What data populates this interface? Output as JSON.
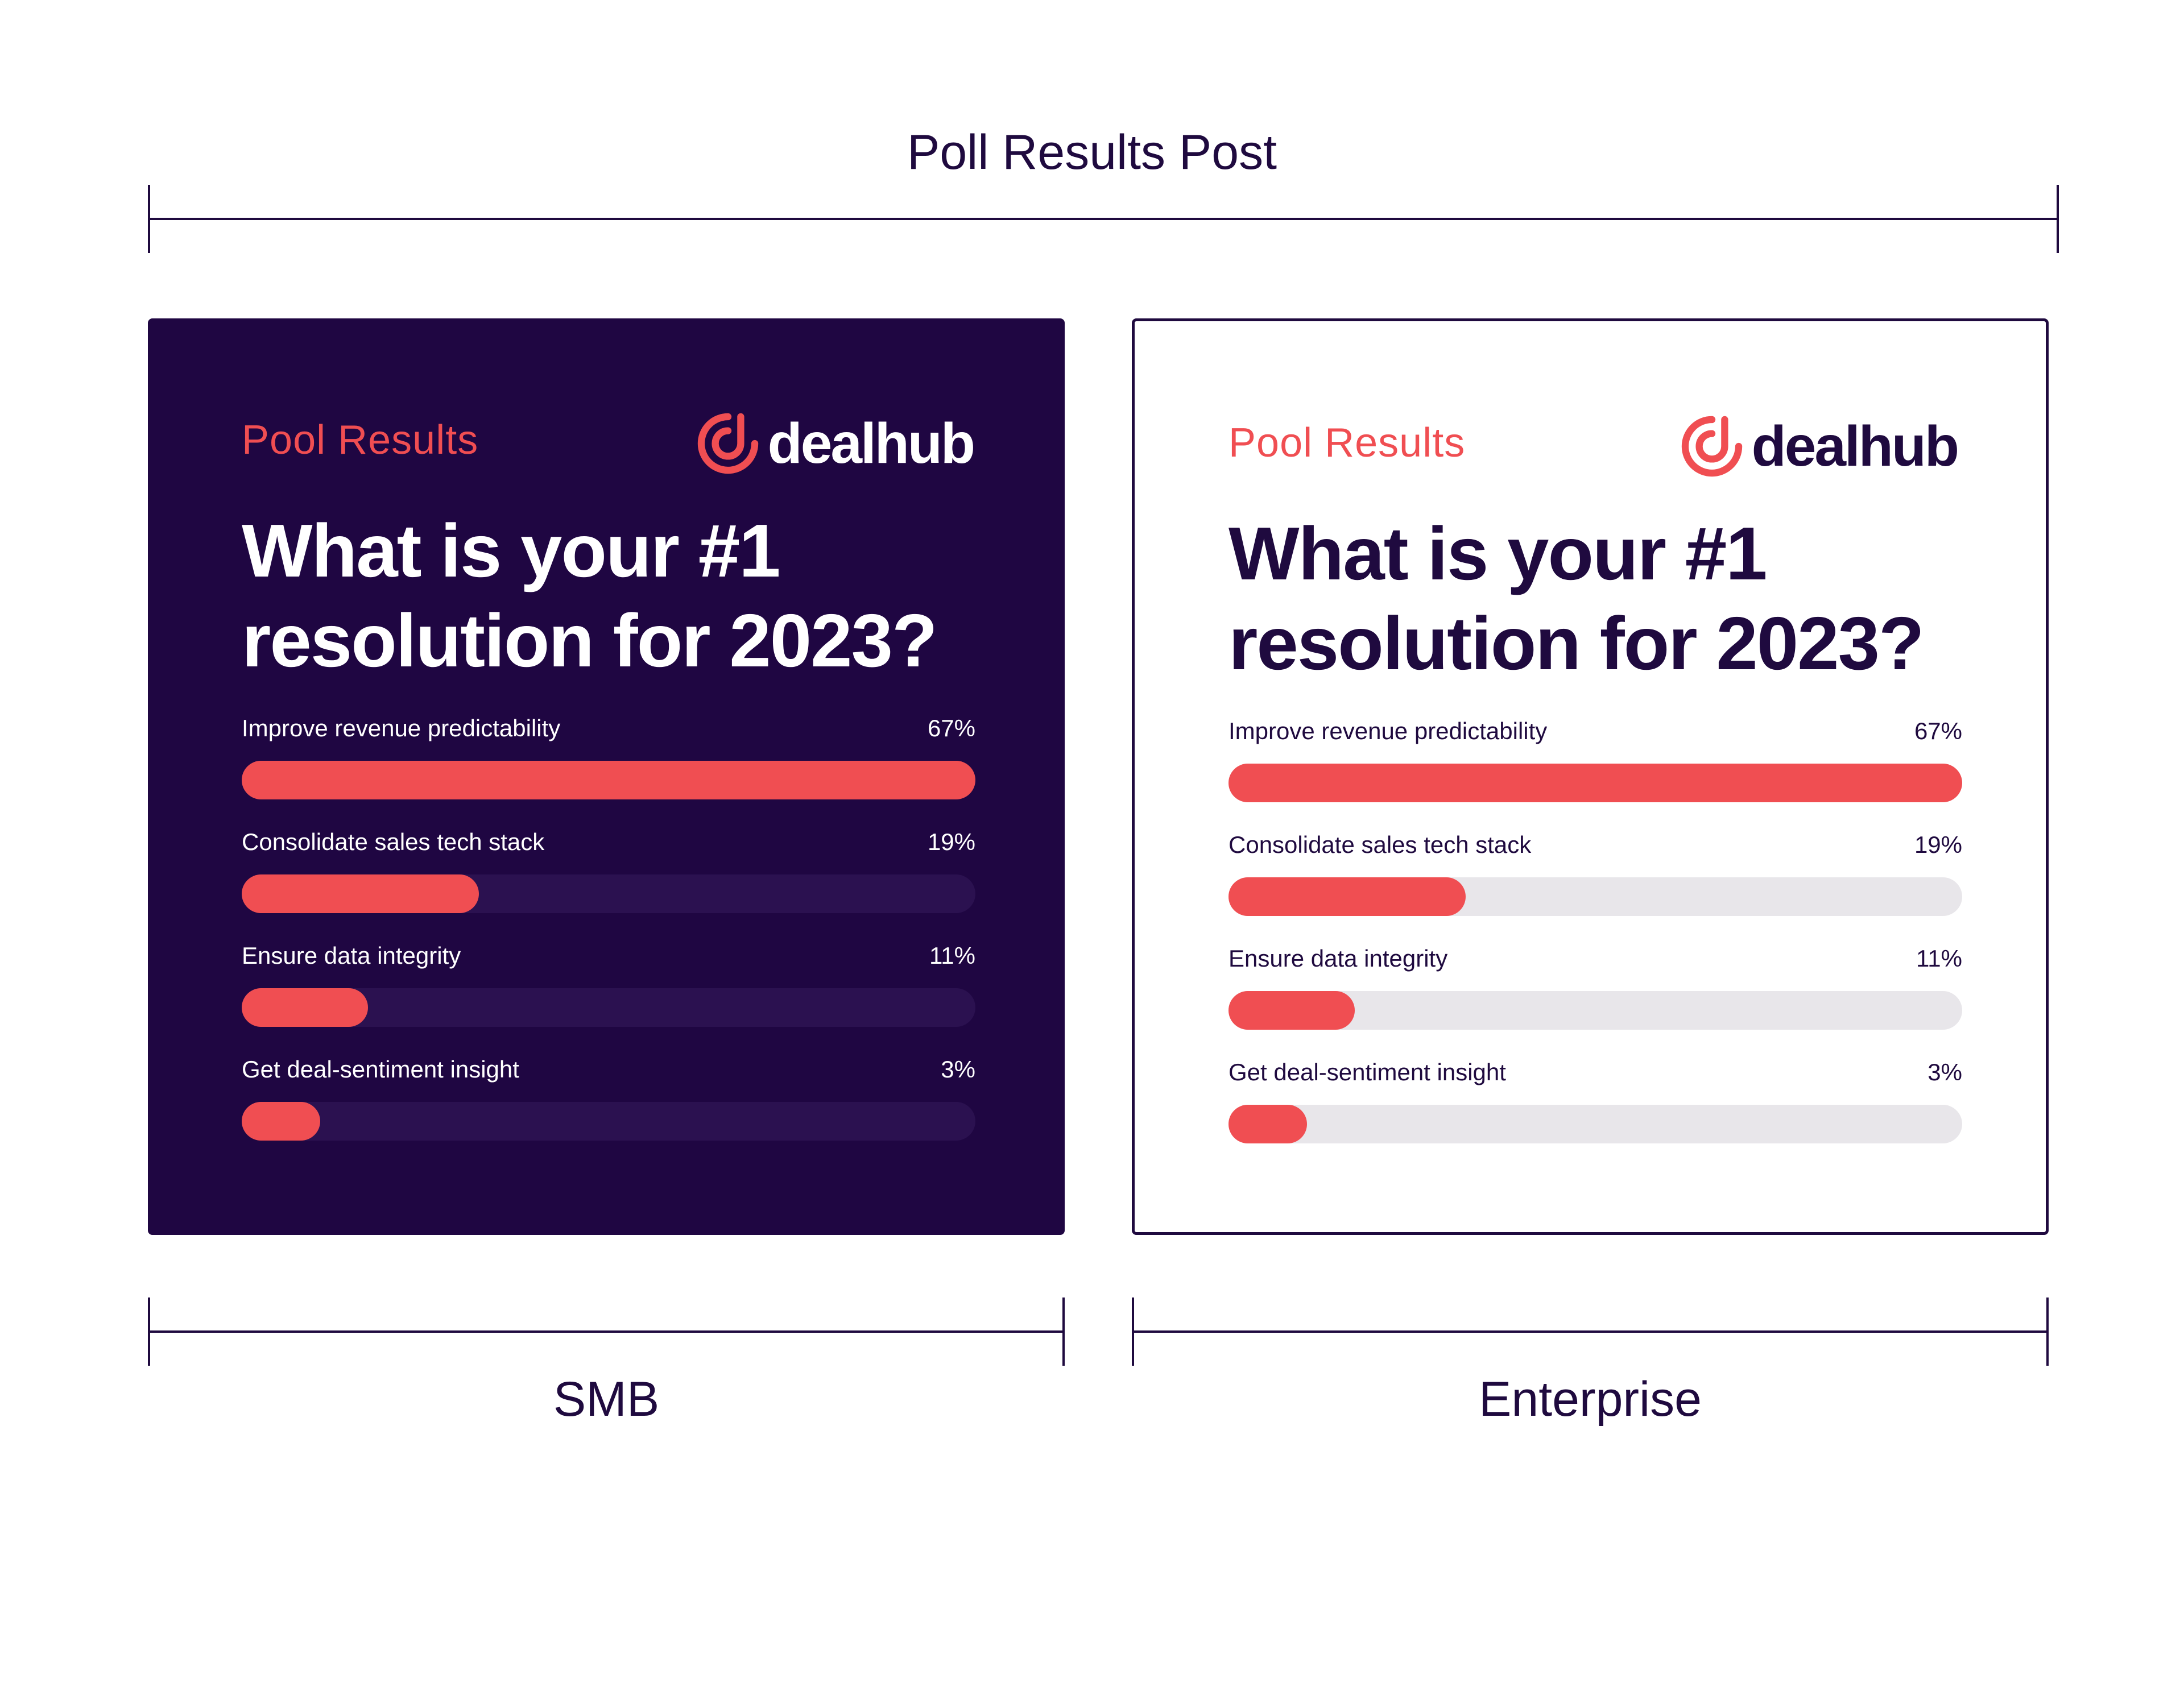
{
  "header": {
    "title": "Poll Results Post"
  },
  "labels": {
    "smb": "SMB",
    "enterprise": "Enterprise"
  },
  "colors": {
    "accent": "#f04e52",
    "dark_bg": "#1f0642",
    "ink": "#1f0a3f"
  },
  "cards": [
    {
      "variant": "dark",
      "kicker": "Pool Results",
      "logo_text": "dealhub",
      "question": "What is your #1 resolution for 2023?",
      "options": [
        {
          "label": "Improve revenue predictability",
          "pct": "67%",
          "fill": 1.0
        },
        {
          "label": "Consolidate sales tech stack",
          "pct": "19%",
          "fill": 0.323
        },
        {
          "label": "Ensure data integrity",
          "pct": "11%",
          "fill": 0.172
        },
        {
          "label": "Get deal-sentiment insight",
          "pct": "3%",
          "fill": 0.107
        }
      ]
    },
    {
      "variant": "light",
      "kicker": "Pool Results",
      "logo_text": "dealhub",
      "question": "What is your #1 resolution for 2023?",
      "options": [
        {
          "label": "Improve revenue predictability",
          "pct": "67%",
          "fill": 1.0
        },
        {
          "label": "Consolidate sales tech stack",
          "pct": "19%",
          "fill": 0.323
        },
        {
          "label": "Ensure data integrity",
          "pct": "11%",
          "fill": 0.172
        },
        {
          "label": "Get deal-sentiment insight",
          "pct": "3%",
          "fill": 0.107
        }
      ]
    }
  ]
}
